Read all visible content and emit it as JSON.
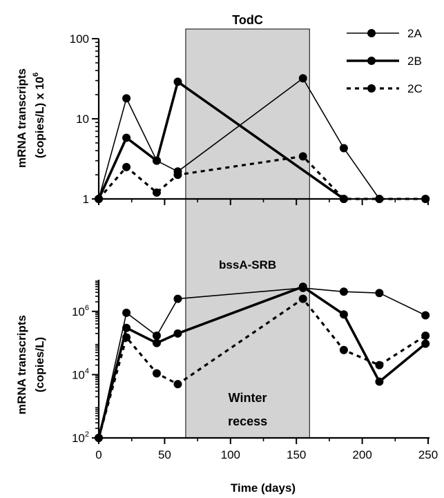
{
  "chart_data": [
    {
      "type": "line",
      "title": "TodC",
      "ylabel_line1": "mRNA transcripts",
      "ylabel_line2": "(copies/L) x 10",
      "ylabel_exp": "6",
      "yscale": "log",
      "ylim": [
        1,
        100
      ],
      "xlim": [
        0,
        250
      ],
      "y_ticks": [
        {
          "v": 1,
          "label": "1"
        },
        {
          "v": 10,
          "label": "10"
        },
        {
          "v": 100,
          "label": "100"
        }
      ],
      "legend": "top-right",
      "series": [
        {
          "name": "2A",
          "style": "thin-solid",
          "x": [
            0,
            21,
            44,
            60,
            155,
            186,
            213,
            248
          ],
          "y": [
            1,
            18,
            3,
            2.2,
            32,
            4.3,
            1,
            1
          ]
        },
        {
          "name": "2B",
          "style": "thick-solid",
          "x": [
            0,
            21,
            44,
            60,
            186
          ],
          "y": [
            1,
            5.8,
            3,
            29,
            1
          ]
        },
        {
          "name": "2C",
          "style": "dashed",
          "x": [
            0,
            21,
            44,
            60,
            155,
            186,
            213,
            248
          ],
          "y": [
            1,
            2.5,
            1.2,
            2,
            3.4,
            1,
            1,
            1
          ]
        }
      ]
    },
    {
      "type": "line",
      "title": "bssA-SRB",
      "ylabel_line1": "mRNA transcripts",
      "ylabel_line2": "(copies/L)",
      "yscale": "log",
      "ylim": [
        100,
        10000000
      ],
      "xlim": [
        0,
        250
      ],
      "y_ticks": [
        {
          "v": 100,
          "base": "10",
          "exp": "2"
        },
        {
          "v": 10000,
          "base": "10",
          "exp": "4"
        },
        {
          "v": 1000000,
          "base": "10",
          "exp": "6"
        }
      ],
      "x_ticks": [
        0,
        50,
        100,
        150,
        200,
        250
      ],
      "xlabel": "Time (days)",
      "series": [
        {
          "name": "2A",
          "style": "thin-solid",
          "x": [
            0,
            21,
            44,
            60,
            155,
            186,
            213,
            248
          ],
          "y": [
            100,
            900000,
            170000,
            2500000,
            5500000,
            4200000,
            3800000,
            750000
          ]
        },
        {
          "name": "2B",
          "style": "thick-solid",
          "x": [
            0,
            21,
            44,
            60,
            155,
            186,
            213,
            248
          ],
          "y": [
            100,
            300000,
            100000,
            200000,
            6000000,
            800000,
            6000,
            95000
          ]
        },
        {
          "name": "2C",
          "style": "dashed",
          "x": [
            0,
            21,
            44,
            60,
            155,
            186,
            213,
            248
          ],
          "y": [
            100,
            150000,
            11000,
            5000,
            2500000,
            60000,
            20000,
            170000
          ]
        }
      ]
    }
  ],
  "shaded_region": {
    "x_range": [
      66,
      160
    ],
    "label_line1": "Winter",
    "label_line2": "recess",
    "color": "#d3d3d3"
  }
}
